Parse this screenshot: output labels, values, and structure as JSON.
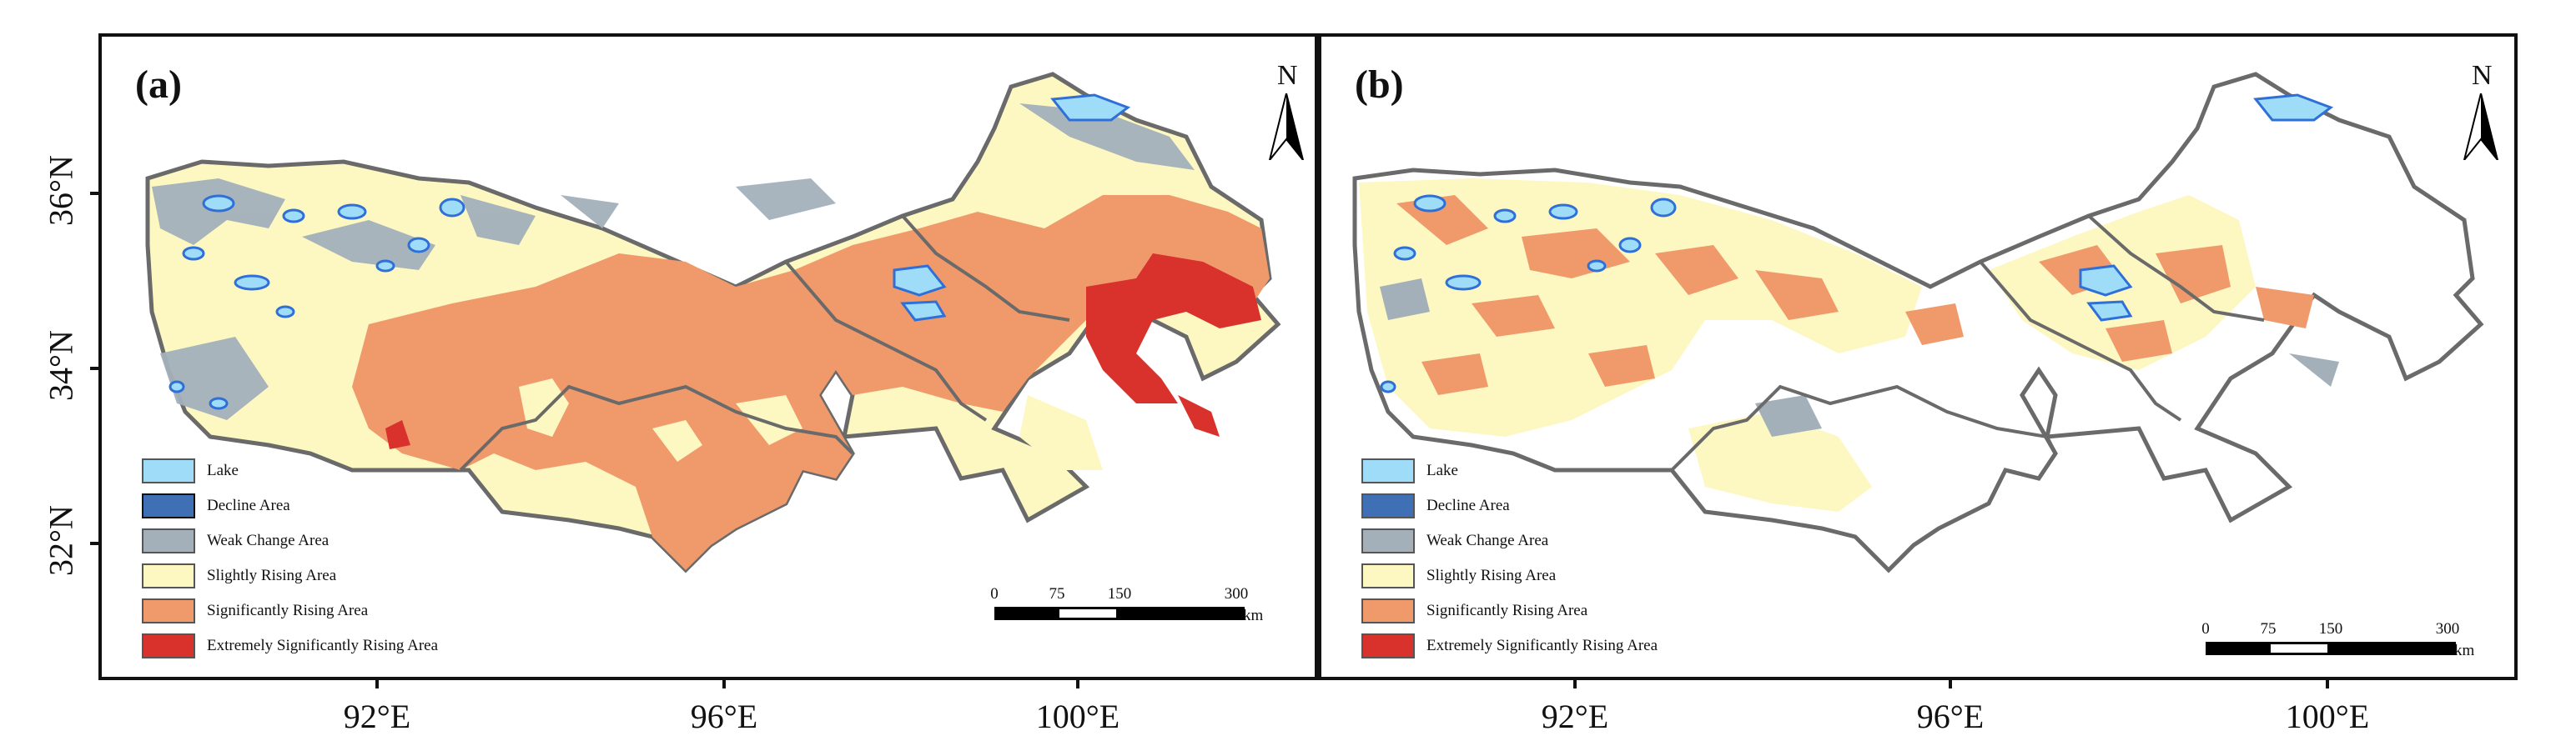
{
  "panels": [
    {
      "label": "(a)",
      "north": "N"
    },
    {
      "label": "(b)",
      "north": "N"
    }
  ],
  "legend": [
    {
      "label": "Lake",
      "color": "#9fdcf7"
    },
    {
      "label": "Decline Area",
      "color": "#3f6fb5"
    },
    {
      "label": "Weak Change Area",
      "color": "#a3b0ba"
    },
    {
      "label": "Slightly Rising Area",
      "color": "#fdf8c2"
    },
    {
      "label": "Significantly Rising Area",
      "color": "#f09a6b"
    },
    {
      "label": "Extremely Significantly Rising Area",
      "color": "#d9312b"
    }
  ],
  "scale_bar": {
    "ticks": [
      "0",
      "75",
      "150",
      "300"
    ],
    "unit": "km"
  },
  "latitudes": [
    "36°N",
    "34°N",
    "32°N"
  ],
  "longitudes": [
    "92°E",
    "96°E",
    "100°E"
  ],
  "colors": {
    "boundary": "#6a6a6a",
    "lake": "#9fdcf7",
    "lake_edge": "#2f6fd8",
    "weak": "#a3b0ba",
    "slight": "#fdf8c2",
    "significant": "#f09a6b",
    "extreme": "#d9312b"
  }
}
